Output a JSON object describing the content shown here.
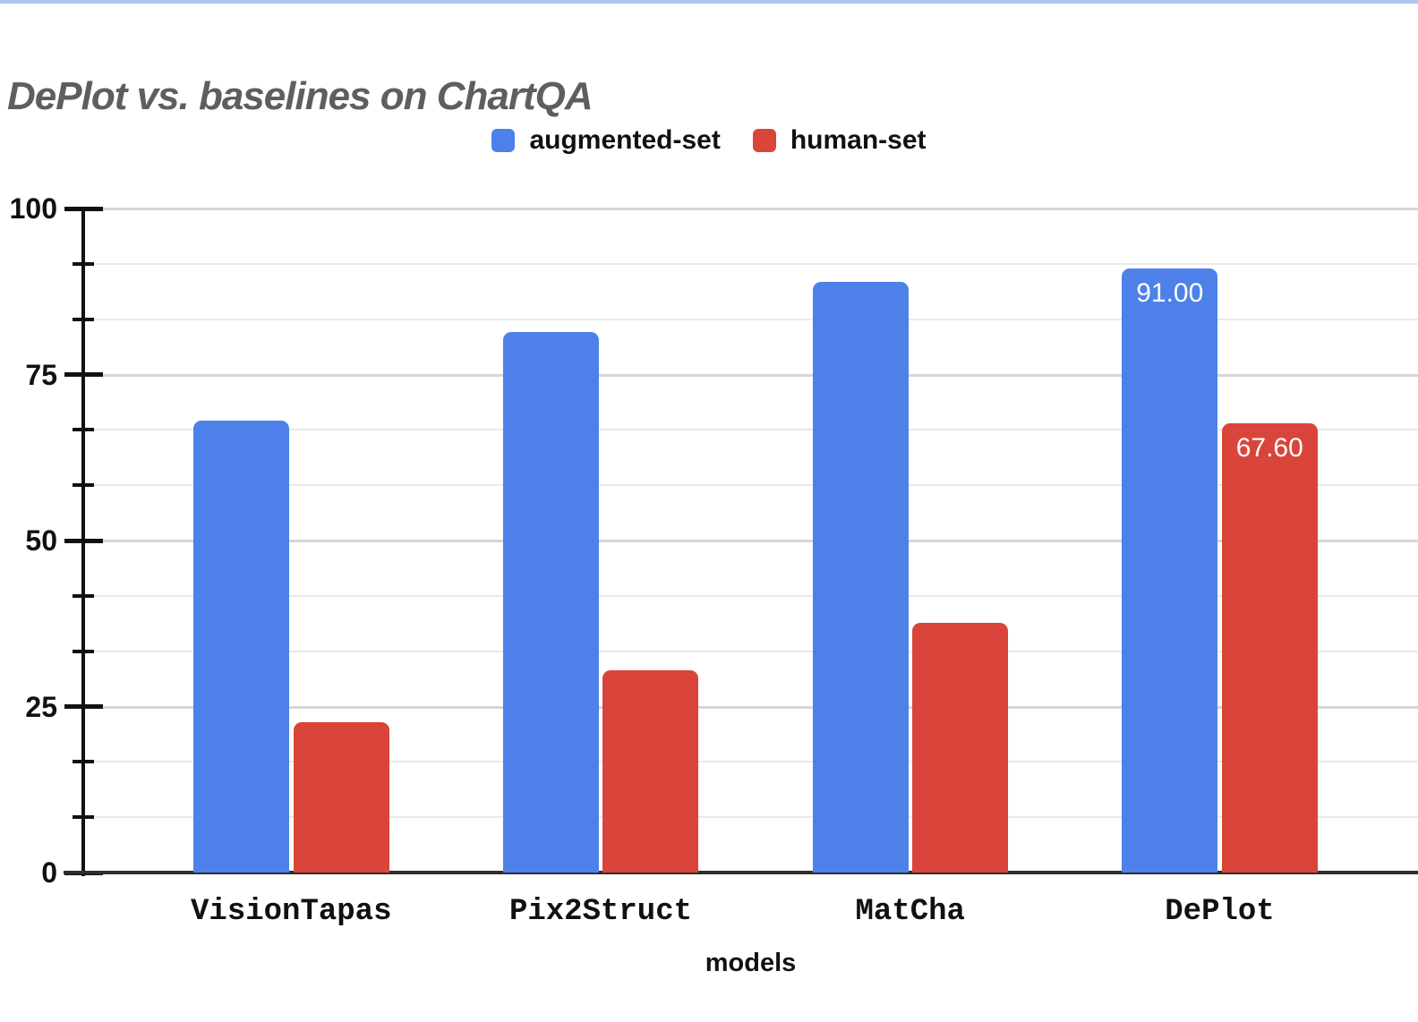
{
  "page": {
    "top_accent_color": "#adc6f2",
    "background_color": "#ffffff",
    "title_color": "#5e5e5e"
  },
  "chart_data": {
    "type": "bar",
    "title": "DePlot vs. baselines on ChartQA",
    "categories": [
      "VisionTapas",
      "Pix2Struct",
      "MatCha",
      "DePlot"
    ],
    "series": [
      {
        "name": "augmented-set",
        "color": "#4d81e9",
        "values": [
          68,
          81.4,
          89,
          91
        ],
        "data_labels": [
          "",
          "",
          "",
          "91.00"
        ]
      },
      {
        "name": "human-set",
        "color": "#d9453a",
        "values": [
          22.7,
          30.5,
          37.6,
          67.6
        ],
        "data_labels": [
          "",
          "",
          "",
          "67.60"
        ]
      }
    ],
    "xlabel": "models",
    "ylabel": "",
    "ylim": [
      0,
      100
    ],
    "yticks_major": [
      0,
      25,
      50,
      75,
      100
    ],
    "minor_ticks_per_major_interval": 2,
    "grid": true,
    "legend_position": "top-center",
    "data_label_color": "#ffffff",
    "axis_color": "#111111",
    "baseline_color": "#2e2e2e",
    "gridline_major_color": "#d6d6d6",
    "gridline_minor_color": "#e9e9e9"
  }
}
